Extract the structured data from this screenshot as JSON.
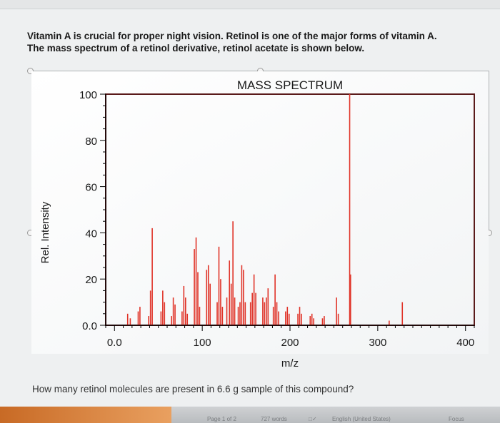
{
  "question_intro": {
    "line1": "Vitamin A is crucial for proper night vision.  Retinol is one of the major forms of vitamin A.",
    "line2": "The mass spectrum of a retinol derivative, retinol acetate is shown below."
  },
  "question_prompt": "How many retinol molecules are present in 6.6 g sample of this compound?",
  "status_bar": {
    "page": "Page 1 of 2",
    "words": "727 words",
    "language": "English (United States)",
    "focus": "Focus"
  },
  "colors": {
    "peaks": "#e03328",
    "axis": "#000000",
    "frame": "#5a1a1a"
  },
  "chart_data": {
    "type": "bar",
    "title": "MASS SPECTRUM",
    "xlabel": "m/z",
    "ylabel": "Rel. Intensity",
    "xlim": [
      -10,
      410
    ],
    "ylim": [
      0,
      100
    ],
    "xticks": [
      "0.0",
      "100",
      "200",
      "300",
      "400"
    ],
    "xtick_values": [
      0,
      100,
      200,
      300,
      400
    ],
    "yticks": [
      "0.0",
      "20",
      "40",
      "60",
      "80",
      "100"
    ],
    "ytick_values": [
      0,
      20,
      40,
      60,
      80,
      100
    ],
    "grid": false,
    "peaks": [
      [
        15,
        5
      ],
      [
        18,
        3
      ],
      [
        27,
        6
      ],
      [
        29,
        8
      ],
      [
        39,
        4
      ],
      [
        41,
        15
      ],
      [
        43,
        42
      ],
      [
        53,
        6
      ],
      [
        55,
        15
      ],
      [
        57,
        10
      ],
      [
        65,
        4
      ],
      [
        67,
        12
      ],
      [
        69,
        9
      ],
      [
        77,
        6
      ],
      [
        79,
        17
      ],
      [
        81,
        12
      ],
      [
        83,
        5
      ],
      [
        91,
        33
      ],
      [
        93,
        38
      ],
      [
        95,
        23
      ],
      [
        97,
        8
      ],
      [
        105,
        24
      ],
      [
        107,
        26
      ],
      [
        109,
        18
      ],
      [
        117,
        10
      ],
      [
        119,
        34
      ],
      [
        121,
        20
      ],
      [
        123,
        8
      ],
      [
        128,
        12
      ],
      [
        131,
        28
      ],
      [
        133,
        18
      ],
      [
        135,
        45
      ],
      [
        137,
        12
      ],
      [
        141,
        8
      ],
      [
        143,
        10
      ],
      [
        145,
        26
      ],
      [
        147,
        24
      ],
      [
        149,
        10
      ],
      [
        155,
        10
      ],
      [
        157,
        14
      ],
      [
        159,
        22
      ],
      [
        161,
        14
      ],
      [
        169,
        12
      ],
      [
        171,
        10
      ],
      [
        173,
        12
      ],
      [
        175,
        16
      ],
      [
        181,
        8
      ],
      [
        183,
        22
      ],
      [
        185,
        10
      ],
      [
        187,
        6
      ],
      [
        195,
        6
      ],
      [
        197,
        8
      ],
      [
        199,
        5
      ],
      [
        209,
        5
      ],
      [
        211,
        8
      ],
      [
        213,
        5
      ],
      [
        223,
        4
      ],
      [
        225,
        5
      ],
      [
        227,
        3
      ],
      [
        237,
        3
      ],
      [
        239,
        4
      ],
      [
        253,
        12
      ],
      [
        255,
        5
      ],
      [
        268,
        100
      ],
      [
        269,
        22
      ],
      [
        313,
        2
      ],
      [
        328,
        10
      ]
    ]
  }
}
